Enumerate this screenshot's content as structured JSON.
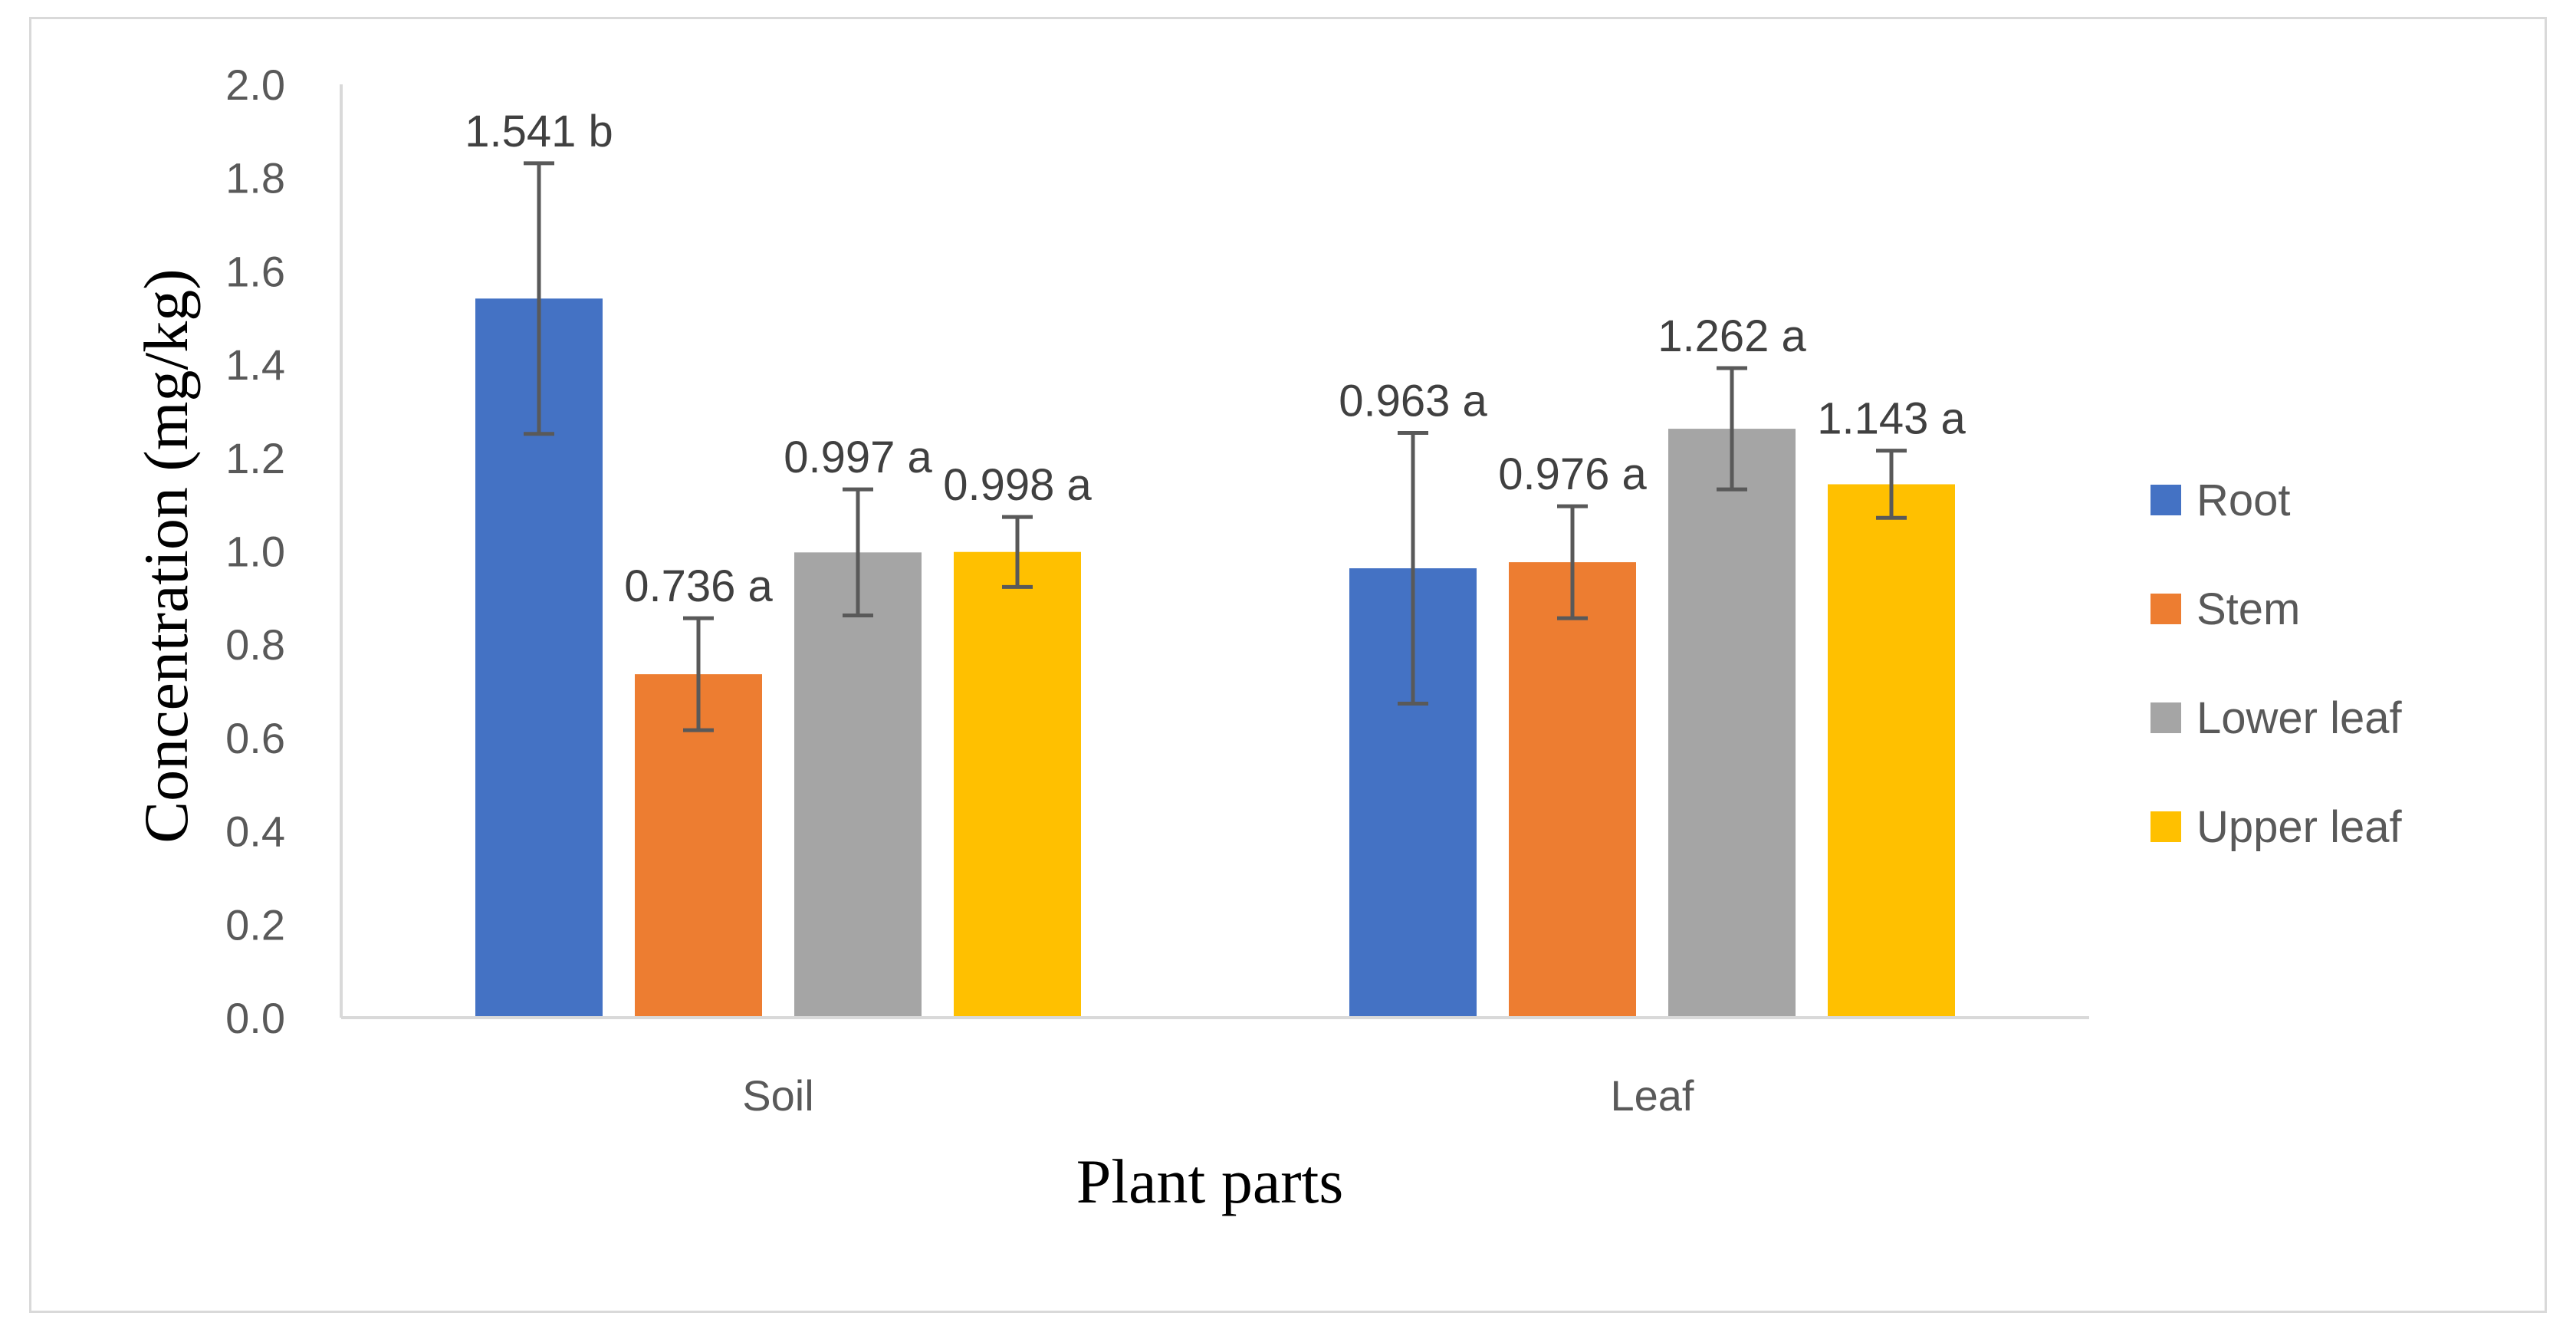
{
  "chart_data": {
    "type": "bar",
    "title": "",
    "xlabel": "Plant parts",
    "ylabel": "Concentration (mg/kg)",
    "ylim": [
      0,
      2.0
    ],
    "yticks": [
      "0.0",
      "0.2",
      "0.4",
      "0.6",
      "0.8",
      "1.0",
      "1.2",
      "1.4",
      "1.6",
      "1.8",
      "2.0"
    ],
    "ytick_values": [
      0,
      0.2,
      0.4,
      0.6,
      0.8,
      1.0,
      1.2,
      1.4,
      1.6,
      1.8,
      2.0
    ],
    "categories": [
      "Soil",
      "Leaf"
    ],
    "legend_position": "right",
    "grid": false,
    "series": [
      {
        "name": "Root",
        "color": "#4472c4",
        "values": [
          1.541,
          0.963
        ],
        "errors": [
          0.29,
          0.29
        ],
        "labels": [
          "1.541 b",
          "0.963 a"
        ]
      },
      {
        "name": "Stem",
        "color": "#ed7d31",
        "values": [
          0.736,
          0.976
        ],
        "errors": [
          0.12,
          0.12
        ],
        "labels": [
          "0.736 a",
          "0.976 a"
        ]
      },
      {
        "name": "Lower leaf",
        "color": "#a5a5a5",
        "values": [
          0.997,
          1.262
        ],
        "errors": [
          0.135,
          0.13
        ],
        "labels": [
          "0.997 a",
          "1.262 a"
        ]
      },
      {
        "name": "Upper leaf",
        "color": "#ffc000",
        "values": [
          0.998,
          1.143
        ],
        "errors": [
          0.075,
          0.072
        ],
        "labels": [
          "0.998 a",
          "1.143 a"
        ]
      }
    ]
  }
}
